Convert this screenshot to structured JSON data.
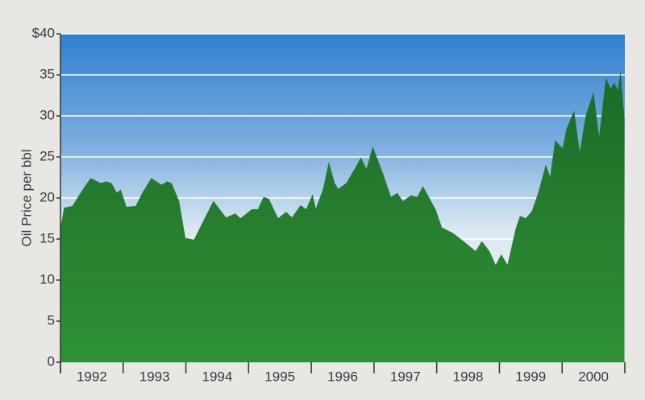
{
  "chart_data": {
    "type": "area",
    "y_label": "Oil Price per bbl",
    "categories": [
      "1992",
      "1993",
      "1994",
      "1995",
      "1996",
      "1997",
      "1998",
      "1999",
      "2000"
    ],
    "x": [
      1992.0,
      1992.06,
      1992.19,
      1992.32,
      1992.48,
      1992.64,
      1992.73,
      1992.81,
      1992.9,
      1992.96,
      1993.05,
      1993.2,
      1993.32,
      1993.45,
      1993.61,
      1993.7,
      1993.77,
      1993.89,
      1993.99,
      1994.13,
      1994.28,
      1994.44,
      1994.64,
      1994.79,
      1994.87,
      1995.05,
      1995.15,
      1995.24,
      1995.32,
      1995.47,
      1995.6,
      1995.69,
      1995.83,
      1995.92,
      1996.02,
      1996.07,
      1996.19,
      1996.28,
      1996.37,
      1996.43,
      1996.56,
      1996.69,
      1996.79,
      1996.88,
      1996.98,
      1997.14,
      1997.27,
      1997.37,
      1997.46,
      1997.59,
      1997.69,
      1997.78,
      1997.98,
      1998.08,
      1998.26,
      1998.43,
      1998.62,
      1998.72,
      1998.84,
      1998.94,
      1999.03,
      1999.13,
      1999.26,
      1999.33,
      1999.42,
      1999.52,
      1999.62,
      1999.74,
      1999.81,
      1999.89,
      2000.01,
      2000.07,
      2000.19,
      2000.28,
      2000.38,
      2000.5,
      2000.59,
      2000.7,
      2000.77,
      2000.83,
      2000.89,
      2000.93,
      2000.99
    ],
    "values": [
      16.2,
      18.8,
      19.0,
      20.6,
      22.4,
      21.8,
      22.0,
      21.8,
      20.6,
      21.0,
      18.9,
      19.0,
      20.8,
      22.4,
      21.6,
      22.0,
      21.8,
      19.6,
      15.1,
      14.9,
      17.2,
      19.6,
      17.6,
      18.1,
      17.5,
      18.6,
      18.6,
      20.1,
      19.9,
      17.5,
      18.3,
      17.6,
      19.1,
      18.6,
      20.4,
      18.6,
      21.1,
      24.3,
      21.8,
      21.1,
      21.8,
      23.5,
      24.9,
      23.5,
      26.2,
      23.0,
      20.1,
      20.6,
      19.6,
      20.3,
      20.1,
      21.4,
      18.6,
      16.4,
      15.7,
      14.7,
      13.5,
      14.7,
      13.5,
      11.8,
      13.1,
      11.8,
      16.2,
      17.8,
      17.5,
      18.4,
      20.6,
      24.0,
      22.5,
      27.0,
      26.0,
      28.4,
      30.6,
      25.5,
      30.1,
      32.8,
      27.3,
      34.6,
      33.3,
      34.0,
      33.1,
      35.3,
      29.9
    ],
    "color": "#237a2c",
    "xlim": [
      1992,
      2001
    ],
    "ylim": [
      0,
      40
    ],
    "yticks": [
      0,
      5,
      10,
      15,
      20,
      25,
      30,
      35,
      {
        "value": 40,
        "label": "$40"
      }
    ],
    "grid": true
  }
}
